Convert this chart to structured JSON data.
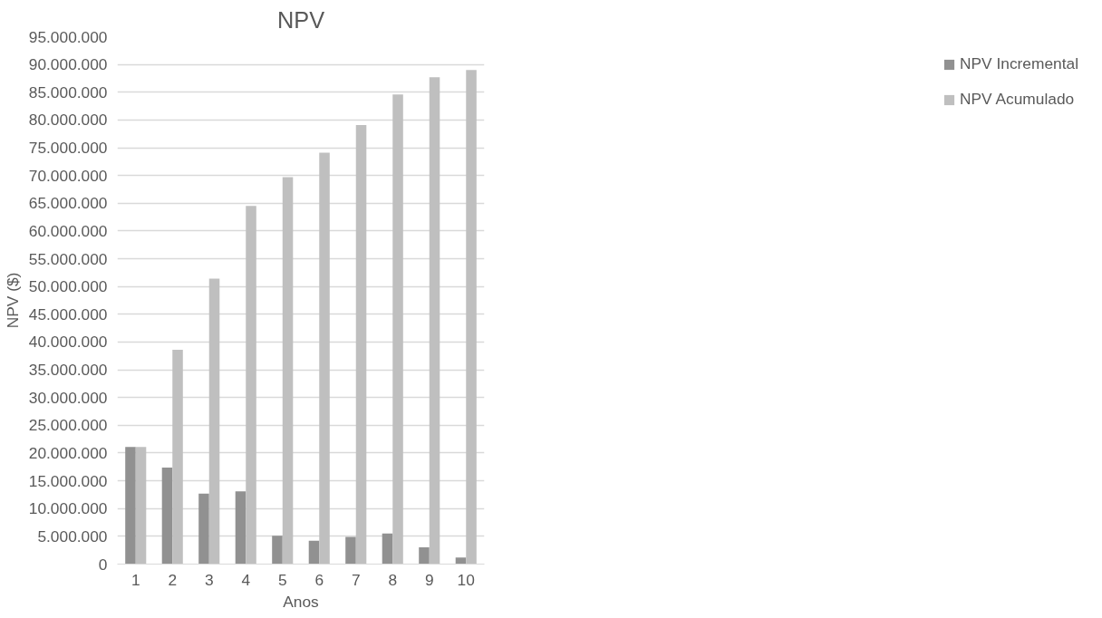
{
  "chart_data": {
    "type": "bar",
    "title": "NPV",
    "xlabel": "Anos",
    "ylabel": "NPV ($)",
    "categories": [
      "1",
      "2",
      "3",
      "4",
      "5",
      "6",
      "7",
      "8",
      "9",
      "10"
    ],
    "series": [
      {
        "name": "NPV Incremental",
        "color": "#919191",
        "values": [
          21100000,
          17400000,
          12700000,
          13100000,
          5100000,
          4200000,
          4900000,
          5500000,
          3000000,
          1200000
        ]
      },
      {
        "name": "NPV Acumulado",
        "color": "#bfbfbf",
        "values": [
          21100000,
          38600000,
          51400000,
          64500000,
          69700000,
          74100000,
          79100000,
          84600000,
          87700000,
          89000000
        ]
      }
    ],
    "ylim": [
      0,
      95000000
    ],
    "yticks": [
      {
        "value": 0,
        "label": "0"
      },
      {
        "value": 5000000,
        "label": "5.000.000"
      },
      {
        "value": 10000000,
        "label": "10.000.000"
      },
      {
        "value": 15000000,
        "label": "15.000.000"
      },
      {
        "value": 20000000,
        "label": "20.000.000"
      },
      {
        "value": 25000000,
        "label": "25.000.000"
      },
      {
        "value": 30000000,
        "label": "30.000.000"
      },
      {
        "value": 35000000,
        "label": "35.000.000"
      },
      {
        "value": 40000000,
        "label": "40.000.000"
      },
      {
        "value": 45000000,
        "label": "45.000.000"
      },
      {
        "value": 50000000,
        "label": "50.000.000"
      },
      {
        "value": 55000000,
        "label": "55.000.000"
      },
      {
        "value": 60000000,
        "label": "60.000.000"
      },
      {
        "value": 65000000,
        "label": "65.000.000"
      },
      {
        "value": 70000000,
        "label": "70.000.000"
      },
      {
        "value": 75000000,
        "label": "75.000.000"
      },
      {
        "value": 80000000,
        "label": "80.000.000"
      },
      {
        "value": 85000000,
        "label": "85.000.000"
      },
      {
        "value": 90000000,
        "label": "90.000.000"
      },
      {
        "value": 95000000,
        "label": "95.000.000"
      }
    ],
    "grid": "y",
    "legend": "right"
  }
}
